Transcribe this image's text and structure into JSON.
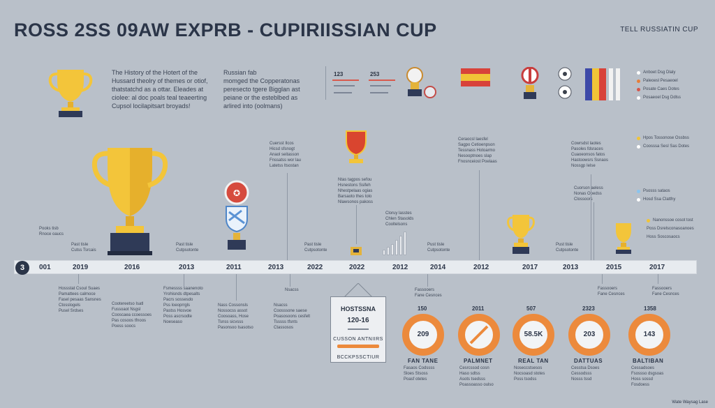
{
  "title": "ROSS 2SS 09AW EXPRB - CUPIRIISSIAN CUP",
  "top_right": "TELL RUSSIATIN CUP",
  "intro_left": [
    "The History of the Hotert of the",
    "Hussard theolry of themes or otiof,",
    "thatstatchd as a ottar. Eleades at",
    "ciolee: al doc poals teal teaeerting",
    "Cupsol locilapitsart broyads!"
  ],
  "intro_right": [
    "Russian fab",
    "momged the Copperatonas",
    "peresecto tgere Bigglan ast",
    "peiane or the esteblbed as",
    "arlired into (oolmans)"
  ],
  "top_stats": {
    "a": "123",
    "b": "253"
  },
  "timeline_start": "3",
  "years": [
    "001",
    "2019",
    "2016",
    "2013",
    "2011",
    "2013",
    "2022",
    "2022",
    "2012",
    "2014",
    "2012",
    "2017",
    "2013",
    "2015",
    "2017"
  ],
  "upper_labels": {
    "l1": [
      "Pooks tisb",
      "Rnoce oaucs"
    ],
    "l2": [
      "Past tisle",
      "Cutss Tsrcais"
    ],
    "l3": [
      "Past tisle",
      "Cutpsotonte"
    ],
    "l4": [
      "Past tisle",
      "Cutpsotonte"
    ],
    "l5": [
      "Pust tisle",
      "Cutpsotonte"
    ],
    "l6": [
      "Pust tisle",
      "Cutpsotonte"
    ],
    "n1": [
      "Cuersst Ilcos",
      "Hicsd sfsnogt",
      "Anaol seitasson",
      "Fnssatss wor lau",
      "Latetss ltsostan"
    ],
    "n2": [
      "Ntas tagpos sefou",
      "Hsnestons Ssifeh",
      "Nhestpelaas ogias",
      "Barsaoto thes tolo",
      "Nlawsonos pakoss"
    ],
    "n3": [
      "Cloruy lasstes",
      "Chlen Stasolds",
      "Cooltelsons"
    ],
    "n4": [
      "Ceraocsl laesfel",
      "Sagpo Cetioenpson",
      "Tessnass Hotoarmo",
      "Nesooptnoes slap",
      "Fnosnceiost Poelaas"
    ],
    "n5": [
      "Cowrsdst laotes",
      "Pasoles fdsraces",
      "Cuaoeonsos fatos",
      "Hastoowsrs Ssnaos",
      "Nossgp Ielse"
    ],
    "n6": [
      "Cuorson aeless",
      "Nonas Ooedss",
      "Clossoors"
    ]
  },
  "lower_labels": {
    "c1": [
      "Hossstat Csoul Suaes",
      "Pamattees calmoce",
      "Fasel pesaas Sansnes",
      "Ctosslogels",
      "Pusel Srdses"
    ],
    "c2": [
      "Cootereetso Isatl",
      "Fussoaot Nsgsl",
      "Cooscaea ccoessoes",
      "Pas cosoos tfnoos",
      "Poess soocs"
    ],
    "c3": [
      "Fsmessss saanenoto",
      "Yrohisnds dtpesalts",
      "Pacrs sossesdo",
      "Pss loeoprrgls",
      "Pastss Hosvoe",
      "Poss ascrsodte",
      "Noeseaso"
    ],
    "c4": [
      "Nass Cossonsls",
      "Nossocss assot",
      "Coosoass, Hose",
      "Tsnss sicvsss",
      "Pasonsoo Isasotso"
    ],
    "c5": [
      "Nsacss",
      "Coosssone saese",
      "Poasosoons cesfelt",
      "Tsssss tfsnts",
      "Ctassosos"
    ],
    "c6": [
      "Fassooers",
      "Fane Cesnces"
    ]
  },
  "center_card": {
    "line1": "HOSTSSNA",
    "line2": "120-16",
    "line3": "CUSSON ANTNIIRS",
    "line4": "BCCKPSSCTIUR"
  },
  "donuts": [
    {
      "top": "150",
      "value": "209",
      "label": "FAN TANE",
      "notes": [
        "Fasaos Codssss",
        "Sloes Stsoss",
        "Poasf otetes"
      ]
    },
    {
      "top": "2011",
      "value": "",
      "label": "PALMNET",
      "notes": [
        "Cesrcssod cosn",
        "Haso sdtss",
        "Asots tsedsss",
        "Poassoasso oulso"
      ]
    },
    {
      "top": "507",
      "value": "58.5K",
      "label": "REAL TAN",
      "notes": [
        "Noseccstsesos",
        "Nocsoasd stotes",
        "Poss tsodss"
      ]
    },
    {
      "top": "2323",
      "value": "203",
      "label": "DATTUAS",
      "notes": [
        "Cesstsa Dsoes",
        "Cessodsss",
        "Nosss tssd"
      ]
    },
    {
      "top": "1358",
      "value": "143",
      "label": "BALTIBAN",
      "notes": [
        "Cessadsoes",
        "Fsossso dsgsoas",
        "Hoss sossd",
        "Fosdoess"
      ]
    }
  ],
  "legend_top": [
    "Anboet Dsg Dlaly",
    "Paleoesl Pesaeoel",
    "Posate Caes Dotes",
    "Posaeoel Dsg Ddlss"
  ],
  "legend_mid": [
    "Hpos Tossonose Ossbss",
    "Coosssa Sesl Sas Dotes"
  ],
  "legend_low": [
    "Psosss sataos",
    "Hosd Ssa Clatthy"
  ],
  "legend_last": [
    "Nanonssoe cosot tost",
    "Poss Dsrelsconasoanoes",
    "Hoss Soscosaocs"
  ],
  "footer": "Wate Waysag Lase",
  "colors": {
    "accent": "#ec8a3c",
    "dark": "#2b3548",
    "gold": "#f1c437",
    "background": "#b9c0c9"
  },
  "icons": [
    "trophy-icon",
    "badge-icon",
    "flag-icon",
    "football-icon",
    "bar-chart-icon"
  ]
}
